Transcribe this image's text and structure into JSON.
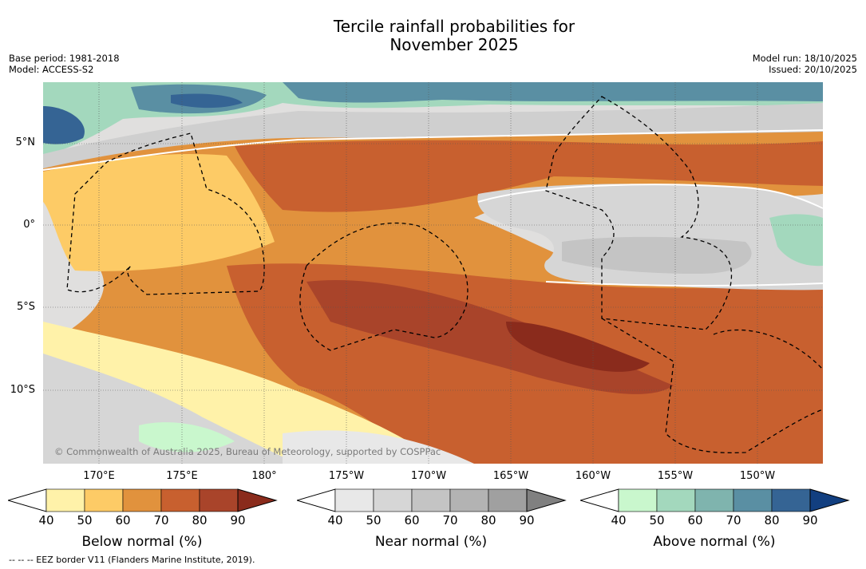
{
  "title_line1": "Tercile rainfall probabilities for",
  "title_line2": "November 2025",
  "meta_left": [
    "Base period: 1981-2018",
    "Model: ACCESS-S2"
  ],
  "meta_right": [
    "Model run: 18/10/2025",
    "Issued: 20/10/2025"
  ],
  "lat_labels": [
    "5°N",
    "0°",
    "5°S",
    "10°S"
  ],
  "lon_labels": [
    "170°E",
    "175°E",
    "180°",
    "175°W",
    "170°W",
    "165°W",
    "160°W",
    "155°W",
    "150°W"
  ],
  "attribution": "© Commonwealth of Australia 2025, Bureau of Meteorology, supported by COSPPac",
  "footnote": "--  --  -- EEZ border V11 (Flanders Marine Institute, 2019).",
  "colorbars": [
    {
      "label": "Below normal (%)",
      "ticks": [
        "40",
        "50",
        "60",
        "70",
        "80",
        "90"
      ],
      "colors": [
        "#fff2a9",
        "#fdcb66",
        "#e1923d",
        "#c8602f",
        "#a9442a",
        "#8a2b1c"
      ]
    },
    {
      "label": "Near normal (%)",
      "ticks": [
        "40",
        "50",
        "60",
        "70",
        "80",
        "90"
      ],
      "colors": [
        "#e8e8e8",
        "#d6d6d6",
        "#c4c4c4",
        "#b3b3b3",
        "#a0a0a0",
        "#808080"
      ]
    },
    {
      "label": "Above normal (%)",
      "ticks": [
        "40",
        "50",
        "60",
        "70",
        "80",
        "90"
      ],
      "colors": [
        "#c9f7cd",
        "#a3d8bd",
        "#7fb4ae",
        "#5a8fa3",
        "#356494",
        "#123f80"
      ]
    }
  ]
}
